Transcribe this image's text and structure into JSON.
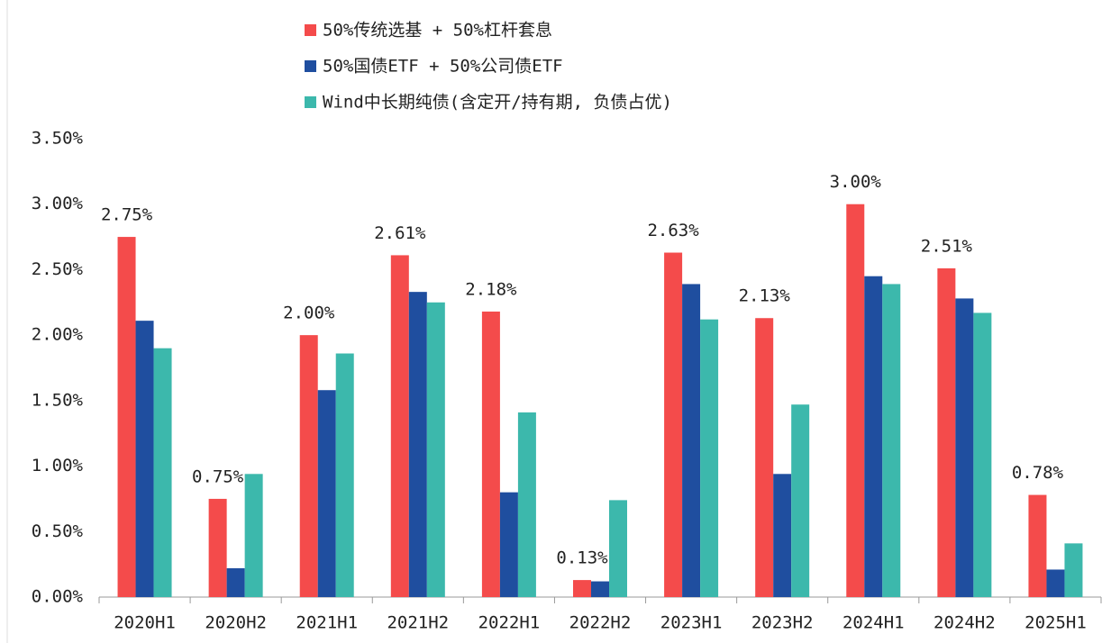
{
  "chart_data": {
    "type": "bar",
    "categories": [
      "2020H1",
      "2020H2",
      "2021H1",
      "2021H2",
      "2022H1",
      "2022H2",
      "2023H1",
      "2023H2",
      "2024H1",
      "2024H2",
      "2025H1"
    ],
    "series": [
      {
        "name": "50%传统选基 + 50%杠杆套息",
        "color": "#f44b4b",
        "values": [
          2.75,
          0.75,
          2.0,
          2.61,
          2.18,
          0.13,
          2.63,
          2.13,
          3.0,
          2.51,
          0.78
        ],
        "value_labels": [
          "2.75%",
          "0.75%",
          "2.00%",
          "2.61%",
          "2.18%",
          "0.13%",
          "2.63%",
          "2.13%",
          "3.00%",
          "2.51%",
          "0.78%"
        ]
      },
      {
        "name": "50%国债ETF + 50%公司债ETF",
        "color": "#1f4e9f",
        "values": [
          2.11,
          0.22,
          1.58,
          2.33,
          0.8,
          0.12,
          2.39,
          0.94,
          2.45,
          2.28,
          0.21
        ]
      },
      {
        "name": "Wind中长期纯债(含定开/持有期, 负债占优)",
        "color": "#3cb8ac",
        "values": [
          1.9,
          0.94,
          1.86,
          2.25,
          1.41,
          0.74,
          2.12,
          1.47,
          2.39,
          2.17,
          0.41
        ]
      }
    ],
    "ylim": [
      0,
      3.5
    ],
    "yticks": [
      {
        "value": 0,
        "label": "0.00%"
      },
      {
        "value": 0.5,
        "label": "0.50%"
      },
      {
        "value": 1,
        "label": "1.00%"
      },
      {
        "value": 1.5,
        "label": "1.50%"
      },
      {
        "value": 2,
        "label": "2.00%"
      },
      {
        "value": 2.5,
        "label": "2.50%"
      },
      {
        "value": 3,
        "label": "3.00%"
      },
      {
        "value": 3.5,
        "label": "3.50%"
      }
    ],
    "grid": false,
    "legend": "top"
  }
}
